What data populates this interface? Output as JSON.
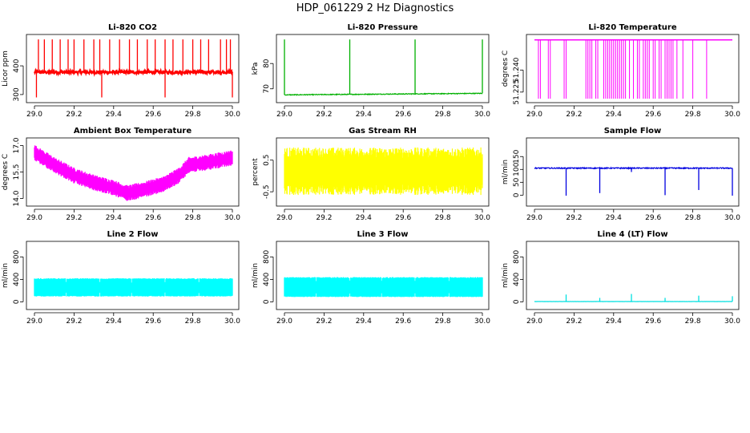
{
  "page_title": "HDP_061229  2 Hz Diagnostics",
  "chart_data": [
    {
      "id": "co2",
      "type": "line",
      "title": "Li-820 CO2",
      "ylabel": "Licor ppm",
      "color": "#ff0000",
      "xlim": [
        29.0,
        30.0
      ],
      "ylim": [
        283,
        498
      ],
      "xticks": [
        29.0,
        29.2,
        29.4,
        29.6,
        29.8,
        30.0
      ],
      "xtick_labels": [
        "29.0",
        "29.2",
        "29.4",
        "29.6",
        "29.8",
        "30.0"
      ],
      "yticks": [
        300,
        400
      ],
      "ytick_labels": [
        "300",
        "400"
      ],
      "signal": {
        "kind": "baseline_spikes",
        "base": 378,
        "noise": 6,
        "spike_hi": 492,
        "spike_lo": 290,
        "spike_x": [
          29.02,
          29.05,
          29.09,
          29.13,
          29.17,
          29.2,
          29.25,
          29.3,
          29.33,
          29.38,
          29.43,
          29.48,
          29.52,
          29.57,
          29.61,
          29.66,
          29.7,
          29.75,
          29.8,
          29.84,
          29.88,
          29.94,
          29.97,
          29.99
        ],
        "dip_x": [
          29.01,
          29.34,
          29.66,
          30.0
        ]
      }
    },
    {
      "id": "pressure",
      "type": "line",
      "title": "Li-820 Pressure",
      "ylabel": "kPa",
      "color": "#00b000",
      "xlim": [
        29.0,
        30.0
      ],
      "ylim": [
        65.8,
        90.2
      ],
      "xticks": [
        29.0,
        29.2,
        29.4,
        29.6,
        29.8,
        30.0
      ],
      "xtick_labels": [
        "29.0",
        "29.2",
        "29.4",
        "29.6",
        "29.8",
        "30.0"
      ],
      "yticks": [
        70,
        80
      ],
      "ytick_labels": [
        "70",
        "80"
      ],
      "signal": {
        "kind": "baseline_spikes",
        "base_start": 67.6,
        "base_end": 68.2,
        "noise": 0.15,
        "spike_hi": 89.5,
        "spike_x": [
          29.0,
          29.33,
          29.66,
          30.0
        ]
      }
    },
    {
      "id": "licor-temp",
      "type": "line",
      "title": "Li-820 Temperature",
      "ylabel": "degrees C",
      "color": "#ff00ff",
      "xlim": [
        29.0,
        30.0
      ],
      "ylim": [
        51.22,
        51.262
      ],
      "xticks": [
        29.0,
        29.2,
        29.4,
        29.6,
        29.8,
        30.0
      ],
      "xtick_labels": [
        "29.0",
        "29.2",
        "29.4",
        "29.6",
        "29.8",
        "30.0"
      ],
      "yticks": [
        51.225,
        51.24
      ],
      "ytick_labels": [
        "51.225",
        "51.240"
      ],
      "signal": {
        "kind": "flat_dropouts",
        "base": 51.2605,
        "low": 51.2205,
        "drop_x": [
          29.02,
          29.03,
          29.07,
          29.08,
          29.15,
          29.16,
          29.26,
          29.27,
          29.28,
          29.29,
          29.31,
          29.32,
          29.35,
          29.36,
          29.37,
          29.38,
          29.39,
          29.4,
          29.41,
          29.42,
          29.43,
          29.44,
          29.45,
          29.46,
          29.48,
          29.5,
          29.52,
          29.53,
          29.55,
          29.56,
          29.57,
          29.58,
          29.6,
          29.61,
          29.63,
          29.64,
          29.66,
          29.67,
          29.68,
          29.69,
          29.7,
          29.72,
          29.75,
          29.8,
          29.87
        ]
      }
    },
    {
      "id": "box-temp",
      "type": "area",
      "title": "Ambient Box Temperature",
      "ylabel": "degrees C",
      "color": "#ff00ff",
      "xlim": [
        29.0,
        30.0
      ],
      "ylim": [
        13.75,
        17.25
      ],
      "xticks": [
        29.0,
        29.2,
        29.4,
        29.6,
        29.8,
        30.0
      ],
      "xtick_labels": [
        "29.0",
        "29.2",
        "29.4",
        "29.6",
        "29.8",
        "30.0"
      ],
      "yticks": [
        14.0,
        15.5,
        17.0
      ],
      "ytick_labels": [
        "14.0",
        "15.5",
        "17.0"
      ],
      "signal": {
        "kind": "envelope",
        "center": [
          [
            29.0,
            16.6
          ],
          [
            29.1,
            15.9
          ],
          [
            29.2,
            15.3
          ],
          [
            29.3,
            14.9
          ],
          [
            29.4,
            14.6
          ],
          [
            29.47,
            14.3
          ],
          [
            29.55,
            14.5
          ],
          [
            29.65,
            14.8
          ],
          [
            29.73,
            15.3
          ],
          [
            29.78,
            15.9
          ],
          [
            29.85,
            16.0
          ],
          [
            29.95,
            16.2
          ],
          [
            30.0,
            16.3
          ]
        ],
        "halfwidth": 0.45
      }
    },
    {
      "id": "rh",
      "type": "area",
      "title": "Gas Stream RH",
      "ylabel": "percent",
      "color": "#ffff00",
      "xlim": [
        29.0,
        30.0
      ],
      "ylim": [
        -0.85,
        1.1
      ],
      "xticks": [
        29.0,
        29.2,
        29.4,
        29.6,
        29.8,
        30.0
      ],
      "xtick_labels": [
        "29.0",
        "29.2",
        "29.4",
        "29.6",
        "29.8",
        "30.0"
      ],
      "yticks": [
        -0.5,
        0.5
      ],
      "ytick_labels": [
        "-0.5",
        "0.5"
      ],
      "signal": {
        "kind": "envelope",
        "center": [
          [
            29.0,
            0.15
          ],
          [
            30.0,
            0.15
          ]
        ],
        "halfwidth": 0.75
      }
    },
    {
      "id": "sample-flow",
      "type": "line",
      "title": "Sample Flow",
      "ylabel": "ml/min",
      "color": "#0000e0",
      "xlim": [
        29.0,
        30.0
      ],
      "ylim": [
        -30,
        210
      ],
      "xticks": [
        29.0,
        29.2,
        29.4,
        29.6,
        29.8,
        30.0
      ],
      "xtick_labels": [
        "29.0",
        "29.2",
        "29.4",
        "29.6",
        "29.8",
        "30.0"
      ],
      "yticks": [
        0,
        50,
        100,
        150
      ],
      "ytick_labels": [
        "0",
        "50",
        "100",
        "150"
      ],
      "signal": {
        "kind": "baseline_drops",
        "base": 105,
        "noise": 2,
        "drop_x": [
          29.16,
          29.33,
          29.49,
          29.66,
          29.83,
          30.0
        ],
        "drop_y": [
          -2,
          8,
          90,
          0,
          20,
          -2
        ]
      }
    },
    {
      "id": "line2",
      "type": "area",
      "title": "Line 2 Flow",
      "ylabel": "ml/min",
      "color": "#00ffff",
      "xlim": [
        29.0,
        30.0
      ],
      "ylim": [
        -80,
        1020
      ],
      "xticks": [
        29.0,
        29.2,
        29.4,
        29.6,
        29.8,
        30.0
      ],
      "xtick_labels": [
        "29.0",
        "29.2",
        "29.4",
        "29.6",
        "29.8",
        "30.0"
      ],
      "yticks": [
        0,
        400,
        800
      ],
      "ytick_labels": [
        "0",
        "400",
        "800"
      ],
      "signal": {
        "kind": "band",
        "low": 95,
        "high": 420,
        "gaps": [
          29.16,
          29.33,
          29.49,
          29.66,
          29.83
        ]
      }
    },
    {
      "id": "line3",
      "type": "area",
      "title": "Line 3 Flow",
      "ylabel": "ml/min",
      "color": "#00ffff",
      "xlim": [
        29.0,
        30.0
      ],
      "ylim": [
        -80,
        1020
      ],
      "xticks": [
        29.0,
        29.2,
        29.4,
        29.6,
        29.8,
        30.0
      ],
      "xtick_labels": [
        "29.0",
        "29.2",
        "29.4",
        "29.6",
        "29.8",
        "30.0"
      ],
      "yticks": [
        0,
        400,
        800
      ],
      "ytick_labels": [
        "0",
        "400",
        "800"
      ],
      "signal": {
        "kind": "band",
        "low": 85,
        "high": 440,
        "gaps": [
          29.16,
          29.33,
          29.49,
          29.66,
          29.83
        ]
      }
    },
    {
      "id": "line4",
      "type": "line",
      "title": "Line 4 (LT) Flow",
      "ylabel": "ml/min",
      "color": "#00e0e0",
      "xlim": [
        29.0,
        30.0
      ],
      "ylim": [
        -80,
        1020
      ],
      "xticks": [
        29.0,
        29.2,
        29.4,
        29.6,
        29.8,
        30.0
      ],
      "xtick_labels": [
        "29.0",
        "29.2",
        "29.4",
        "29.6",
        "29.8",
        "30.0"
      ],
      "yticks": [
        0,
        400,
        800
      ],
      "ytick_labels": [
        "0",
        "400",
        "800"
      ],
      "signal": {
        "kind": "baseline_spikes",
        "base": 5,
        "noise": 1,
        "spike_hi": 120,
        "spike_x": [
          29.16,
          29.33,
          29.49,
          29.66,
          29.83,
          30.0
        ],
        "spike_heights": [
          130,
          70,
          140,
          70,
          110,
          100
        ]
      }
    }
  ]
}
